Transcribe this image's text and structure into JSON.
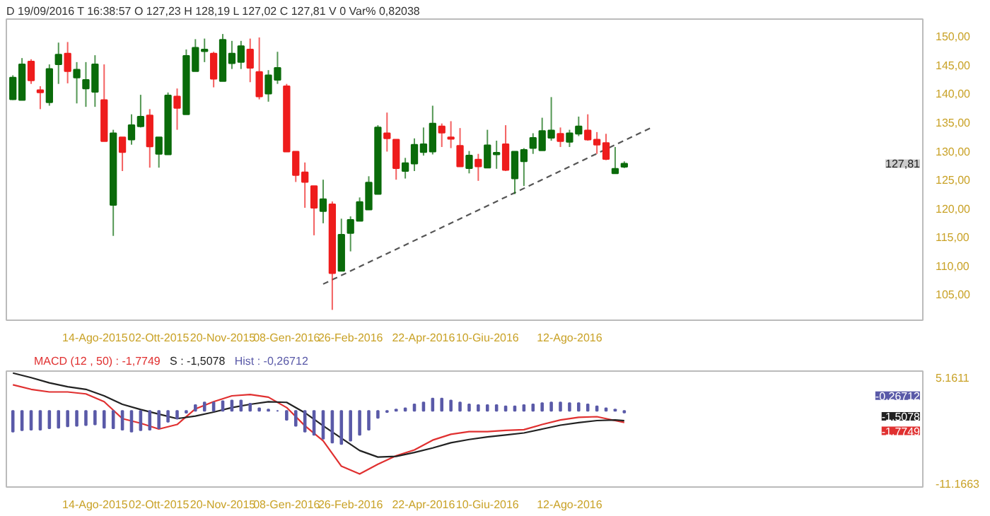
{
  "chart_data": [
    {
      "type": "candlestick",
      "subtitle": "D 19/09/2016  T 16:38:57  O 127,23  H 128,19  L 127,02  C 127,81  V 0  Var% 0,82038",
      "x": [
        "2015-06-12",
        "2015-06-19",
        "2015-06-26",
        "2015-07-03",
        "2015-07-10",
        "2015-07-17",
        "2015-07-24",
        "2015-07-31",
        "2015-08-07",
        "2015-08-14",
        "2015-08-21",
        "2015-08-28",
        "2015-09-04",
        "2015-09-11",
        "2015-09-18",
        "2015-09-25",
        "2015-10-02",
        "2015-10-09",
        "2015-10-16",
        "2015-10-23",
        "2015-10-30",
        "2015-11-06",
        "2015-11-13",
        "2015-11-20",
        "2015-11-27",
        "2015-12-04",
        "2015-12-11",
        "2015-12-18",
        "2015-12-25",
        "2016-01-01",
        "2016-01-08",
        "2016-01-15",
        "2016-01-22",
        "2016-01-29",
        "2016-02-05",
        "2016-02-12",
        "2016-02-19",
        "2016-02-26",
        "2016-03-04",
        "2016-03-11",
        "2016-03-18",
        "2016-03-25",
        "2016-04-01",
        "2016-04-08",
        "2016-04-15",
        "2016-04-22",
        "2016-04-29",
        "2016-05-06",
        "2016-05-13",
        "2016-05-20",
        "2016-05-27",
        "2016-06-03",
        "2016-06-10",
        "2016-06-17",
        "2016-06-24",
        "2016-07-01",
        "2016-07-08",
        "2016-07-15",
        "2016-07-22",
        "2016-07-29",
        "2016-08-05",
        "2016-08-12",
        "2016-08-19",
        "2016-08-26",
        "2016-09-02",
        "2016-09-09",
        "2016-09-16",
        "2016-09-23"
      ],
      "ohlc": [
        [
          139.0,
          143.2,
          138.9,
          142.8
        ],
        [
          138.9,
          146.2,
          138.9,
          145.1
        ],
        [
          145.6,
          146.0,
          141.7,
          142.3
        ],
        [
          140.6,
          141.3,
          137.3,
          140.2
        ],
        [
          138.5,
          145.1,
          137.9,
          144.3
        ],
        [
          145.1,
          148.9,
          141.7,
          146.8
        ],
        [
          147.0,
          149.0,
          141.8,
          143.9
        ],
        [
          142.8,
          145.5,
          138.3,
          144.2
        ],
        [
          140.9,
          145.5,
          137.7,
          142.4
        ],
        [
          140.3,
          146.7,
          137.7,
          145.1
        ],
        [
          138.9,
          145.1,
          131.7,
          131.7
        ],
        [
          120.6,
          133.7,
          115.2,
          133.1
        ],
        [
          132.4,
          132.4,
          126.5,
          129.8
        ],
        [
          132.0,
          136.4,
          131.1,
          134.5
        ],
        [
          134.3,
          139.8,
          134.1,
          136.0
        ],
        [
          136.2,
          137.3,
          127.1,
          130.8
        ],
        [
          129.5,
          132.4,
          127.1,
          132.4
        ],
        [
          129.4,
          140.2,
          129.4,
          139.7
        ],
        [
          139.5,
          140.9,
          133.7,
          137.5
        ],
        [
          136.4,
          147.7,
          136.4,
          146.6
        ],
        [
          143.9,
          149.5,
          143.9,
          148.0
        ],
        [
          147.4,
          149.6,
          145.5,
          147.7
        ],
        [
          147.0,
          147.3,
          141.1,
          142.6
        ],
        [
          142.2,
          150.4,
          142.2,
          149.4
        ],
        [
          145.3,
          149.2,
          144.3,
          147.0
        ],
        [
          145.5,
          149.2,
          144.3,
          148.3
        ],
        [
          147.7,
          149.6,
          142.0,
          144.5
        ],
        [
          143.8,
          149.8,
          139.0,
          139.5
        ],
        [
          140.0,
          144.1,
          138.6,
          143.2
        ],
        [
          142.4,
          147.3,
          141.7,
          144.5
        ],
        [
          141.3,
          141.7,
          129.9,
          129.9
        ],
        [
          129.9,
          129.9,
          124.6,
          125.8
        ],
        [
          126.3,
          128.0,
          120.1,
          124.6
        ],
        [
          123.9,
          123.9,
          115.3,
          120.1
        ],
        [
          119.5,
          125.0,
          117.4,
          121.6
        ],
        [
          120.7,
          121.2,
          102.3,
          108.7
        ],
        [
          109.1,
          118.2,
          109.1,
          115.4
        ],
        [
          115.7,
          118.6,
          112.5,
          118.0
        ],
        [
          117.8,
          121.9,
          117.8,
          121.1
        ],
        [
          119.8,
          125.6,
          119.8,
          124.5
        ],
        [
          122.5,
          134.5,
          122.5,
          134.1
        ],
        [
          133.1,
          136.7,
          129.9,
          132.2
        ],
        [
          132.0,
          132.0,
          125.0,
          127.0
        ],
        [
          126.5,
          128.8,
          125.2,
          127.9
        ],
        [
          127.8,
          132.2,
          126.5,
          131.1
        ],
        [
          129.8,
          134.1,
          129.2,
          131.2
        ],
        [
          129.9,
          137.9,
          129.4,
          134.8
        ],
        [
          134.3,
          134.8,
          130.7,
          133.2
        ],
        [
          132.4,
          135.2,
          130.5,
          132.1
        ],
        [
          130.9,
          134.0,
          127.3,
          127.3
        ],
        [
          127.0,
          130.0,
          126.1,
          129.2
        ],
        [
          128.5,
          129.5,
          124.8,
          127.3
        ],
        [
          127.1,
          133.7,
          127.1,
          131.0
        ],
        [
          129.4,
          131.8,
          126.9,
          129.7
        ],
        [
          131.2,
          134.5,
          126.5,
          126.7
        ],
        [
          125.2,
          129.9,
          122.5,
          129.9
        ],
        [
          128.2,
          130.5,
          123.9,
          130.2
        ],
        [
          130.5,
          133.1,
          129.5,
          132.3
        ],
        [
          130.1,
          135.8,
          130.1,
          133.5
        ],
        [
          132.3,
          139.4,
          131.8,
          133.6
        ],
        [
          133.0,
          134.1,
          130.7,
          131.7
        ],
        [
          131.6,
          133.7,
          130.7,
          133.1
        ],
        [
          133.0,
          136.0,
          132.6,
          134.3
        ],
        [
          133.6,
          136.4,
          131.8,
          132.0
        ],
        [
          132.0,
          133.3,
          129.5,
          131.1
        ],
        [
          131.4,
          133.0,
          128.4,
          128.6
        ],
        [
          126.1,
          130.7,
          126.1,
          126.9
        ],
        [
          127.23,
          128.19,
          127.02,
          127.81
        ]
      ],
      "colors": [
        "#0a6b0a",
        "#0a6b0a",
        "#ee1c1c",
        "#ee1c1c",
        "#0a6b0a",
        "#0a6b0a",
        "#ee1c1c",
        "#0a6b0a",
        "#0a6b0a",
        "#0a6b0a",
        "#ee1c1c",
        "#0a6b0a",
        "#ee1c1c",
        "#0a6b0a",
        "#0a6b0a",
        "#ee1c1c",
        "#0a6b0a",
        "#0a6b0a",
        "#ee1c1c",
        "#0a6b0a",
        "#0a6b0a",
        "#0a6b0a",
        "#ee1c1c",
        "#0a6b0a",
        "#0a6b0a",
        "#0a6b0a",
        "#ee1c1c",
        "#ee1c1c",
        "#0a6b0a",
        "#0a6b0a",
        "#ee1c1c",
        "#ee1c1c",
        "#ee1c1c",
        "#ee1c1c",
        "#0a6b0a",
        "#ee1c1c",
        "#0a6b0a",
        "#0a6b0a",
        "#0a6b0a",
        "#0a6b0a",
        "#0a6b0a",
        "#ee1c1c",
        "#ee1c1c",
        "#0a6b0a",
        "#0a6b0a",
        "#0a6b0a",
        "#0a6b0a",
        "#ee1c1c",
        "#ee1c1c",
        "#ee1c1c",
        "#0a6b0a",
        "#ee1c1c",
        "#0a6b0a",
        "#0a6b0a",
        "#ee1c1c",
        "#0a6b0a",
        "#0a6b0a",
        "#0a6b0a",
        "#0a6b0a",
        "#0a6b0a",
        "#ee1c1c",
        "#0a6b0a",
        "#0a6b0a",
        "#ee1c1c",
        "#ee1c1c",
        "#ee1c1c",
        "#0a6b0a",
        "#0a6b0a"
      ],
      "series": [
        {
          "type": "line",
          "x": [
            "2016-02-05",
            "2016-10-14"
          ],
          "values": [
            106.8,
            134.1
          ],
          "color": "#555555",
          "line_style": "dashed"
        }
      ],
      "annotations": [
        "127,81"
      ],
      "xlim": [
        "2015-06-07",
        "2017-05-10"
      ],
      "ylim": [
        100.5,
        153
      ],
      "xticks": [
        {
          "value": "2015-08-14",
          "label": "14-Ago-2015"
        },
        {
          "value": "2015-10-02",
          "label": "02-Ott-2015"
        },
        {
          "value": "2015-11-20",
          "label": "20-Nov-2015"
        },
        {
          "value": "2016-01-08",
          "label": "08-Gen-2016"
        },
        {
          "value": "2016-02-26",
          "label": "26-Feb-2016"
        },
        {
          "value": "2016-04-22",
          "label": "22-Apr-2016"
        },
        {
          "value": "2016-06-10",
          "label": "10-Giu-2016"
        },
        {
          "value": "2016-08-12",
          "label": "12-Ago-2016"
        }
      ],
      "yticks": [
        {
          "value": 105,
          "label": "105,00"
        },
        {
          "value": 110,
          "label": "110,00"
        },
        {
          "value": 115,
          "label": "115,00"
        },
        {
          "value": 120,
          "label": "120,00"
        },
        {
          "value": 125,
          "label": "125,00"
        },
        {
          "value": 130,
          "label": "130,00"
        },
        {
          "value": 135,
          "label": "135,00"
        },
        {
          "value": 140,
          "label": "140,00"
        },
        {
          "value": 145,
          "label": "145,00"
        },
        {
          "value": 150,
          "label": "150,00"
        }
      ]
    },
    {
      "type": "line",
      "x": [
        "2015-06-12",
        "2015-06-19",
        "2015-06-26",
        "2015-07-03",
        "2015-07-10",
        "2015-07-17",
        "2015-07-24",
        "2015-07-31",
        "2015-08-07",
        "2015-08-14",
        "2015-08-21",
        "2015-08-28",
        "2015-09-04",
        "2015-09-11",
        "2015-09-18",
        "2015-09-25",
        "2015-10-02",
        "2015-10-09",
        "2015-10-16",
        "2015-10-23",
        "2015-10-30",
        "2015-11-06",
        "2015-11-13",
        "2015-11-20",
        "2015-11-27",
        "2015-12-04",
        "2015-12-11",
        "2015-12-18",
        "2015-12-25",
        "2016-01-01",
        "2016-01-08",
        "2016-01-15",
        "2016-01-22",
        "2016-01-29",
        "2016-02-05",
        "2016-02-12",
        "2016-02-19",
        "2016-02-26",
        "2016-03-04",
        "2016-03-11",
        "2016-03-18",
        "2016-03-25",
        "2016-04-01",
        "2016-04-08",
        "2016-04-15",
        "2016-04-22",
        "2016-04-29",
        "2016-05-06",
        "2016-05-13",
        "2016-05-20",
        "2016-05-27",
        "2016-06-03",
        "2016-06-10",
        "2016-06-17",
        "2016-06-24",
        "2016-07-01",
        "2016-07-08",
        "2016-07-15",
        "2016-07-22",
        "2016-07-29",
        "2016-08-05",
        "2016-08-12",
        "2016-08-19",
        "2016-08-26",
        "2016-09-02",
        "2016-09-09",
        "2016-09-16",
        "2016-09-23"
      ],
      "series": [
        {
          "name": "MACD (12 , 50) : -1,7749",
          "type": "line",
          "color": "#e03030",
          "x": [
            "2015-06-12",
            "2015-06-26",
            "2015-07-10",
            "2015-07-24",
            "2015-08-07",
            "2015-08-21",
            "2015-09-04",
            "2015-09-18",
            "2015-10-02",
            "2015-10-16",
            "2015-10-30",
            "2015-11-13",
            "2015-11-27",
            "2015-12-11",
            "2015-12-25",
            "2016-01-08",
            "2016-01-22",
            "2016-02-05",
            "2016-02-19",
            "2016-03-04",
            "2016-03-18",
            "2016-04-01",
            "2016-04-15",
            "2016-04-29",
            "2016-05-13",
            "2016-05-27",
            "2016-06-10",
            "2016-06-24",
            "2016-07-08",
            "2016-07-22",
            "2016-08-05",
            "2016-08-19",
            "2016-09-02",
            "2016-09-16",
            "2016-09-23"
          ],
          "values": [
            4.0,
            3.3,
            2.9,
            2.9,
            2.6,
            1.4,
            -1.2,
            -1.9,
            -2.8,
            -2.1,
            0.3,
            1.4,
            2.3,
            2.5,
            2.1,
            0.5,
            -2.3,
            -4.6,
            -8.5,
            -9.7,
            -8.2,
            -6.9,
            -6.0,
            -4.5,
            -3.6,
            -3.2,
            -3.2,
            -3.0,
            -2.9,
            -2.1,
            -1.4,
            -1.0,
            -0.9,
            -1.5,
            -1.7749
          ]
        },
        {
          "name": "S : -1,5078",
          "type": "line",
          "color": "#222222",
          "x": [
            "2015-06-12",
            "2015-06-26",
            "2015-07-10",
            "2015-07-24",
            "2015-08-07",
            "2015-08-21",
            "2015-09-04",
            "2015-09-18",
            "2015-10-02",
            "2015-10-16",
            "2015-10-30",
            "2015-11-13",
            "2015-11-27",
            "2015-12-11",
            "2015-12-25",
            "2016-01-08",
            "2016-01-22",
            "2016-02-05",
            "2016-02-19",
            "2016-03-04",
            "2016-03-18",
            "2016-04-01",
            "2016-04-15",
            "2016-04-29",
            "2016-05-13",
            "2016-05-27",
            "2016-06-10",
            "2016-06-24",
            "2016-07-08",
            "2016-07-22",
            "2016-08-05",
            "2016-08-19",
            "2016-09-02",
            "2016-09-16",
            "2016-09-23"
          ],
          "values": [
            5.8,
            5.1,
            4.3,
            3.7,
            3.3,
            2.3,
            1.0,
            0.2,
            -0.5,
            -1.2,
            -0.8,
            -0.2,
            0.5,
            1.0,
            1.4,
            1.3,
            -0.3,
            -2.3,
            -4.2,
            -6.1,
            -7.1,
            -7.0,
            -6.4,
            -5.7,
            -4.9,
            -4.4,
            -4.0,
            -3.7,
            -3.4,
            -2.8,
            -2.2,
            -1.8,
            -1.5,
            -1.4,
            -1.5078
          ]
        },
        {
          "name": "Hist : -0,26712",
          "type": "bar",
          "color": "#5a5aa8",
          "values": [
            -3.2,
            -3.0,
            -2.9,
            -2.9,
            -2.7,
            -2.6,
            -2.4,
            -2.3,
            -2.2,
            -2.1,
            -2.6,
            -2.7,
            -2.9,
            -3.2,
            -3.0,
            -2.9,
            -2.7,
            -1.7,
            -1.2,
            -0.3,
            0.9,
            1.3,
            1.3,
            1.5,
            1.6,
            1.6,
            1.1,
            0.4,
            0.2,
            0.0,
            -1.4,
            -2.3,
            -3.2,
            -3.7,
            -4.3,
            -4.9,
            -5.1,
            -4.6,
            -3.7,
            -2.9,
            -1.1,
            -0.2,
            0.2,
            0.4,
            1.0,
            1.3,
            1.9,
            1.9,
            1.6,
            1.3,
            1.0,
            0.9,
            0.9,
            0.9,
            0.7,
            0.7,
            0.9,
            1.0,
            1.2,
            1.3,
            1.3,
            1.2,
            1.2,
            1.0,
            0.7,
            0.4,
            0.2,
            -0.26712
          ]
        }
      ],
      "annotations": [
        "-1,7749",
        "-1,5078",
        "-0,26712"
      ],
      "xlim": [
        "2015-06-07",
        "2017-05-10"
      ],
      "ylim": [
        -11.7,
        6.1
      ],
      "xticks": [
        {
          "value": "2015-08-14",
          "label": "14-Ago-2015"
        },
        {
          "value": "2015-10-02",
          "label": "02-Ott-2015"
        },
        {
          "value": "2015-11-20",
          "label": "20-Nov-2015"
        },
        {
          "value": "2016-01-08",
          "label": "08-Gen-2016"
        },
        {
          "value": "2016-02-26",
          "label": "26-Feb-2016"
        },
        {
          "value": "2016-04-22",
          "label": "22-Apr-2016"
        },
        {
          "value": "2016-06-10",
          "label": "10-Giu-2016"
        },
        {
          "value": "2016-08-12",
          "label": "12-Ago-2016"
        }
      ],
      "yticks": [
        {
          "value": 5.1611,
          "label": "5.1611"
        },
        {
          "value": -11.1663,
          "label": "-11.1663"
        }
      ]
    }
  ]
}
